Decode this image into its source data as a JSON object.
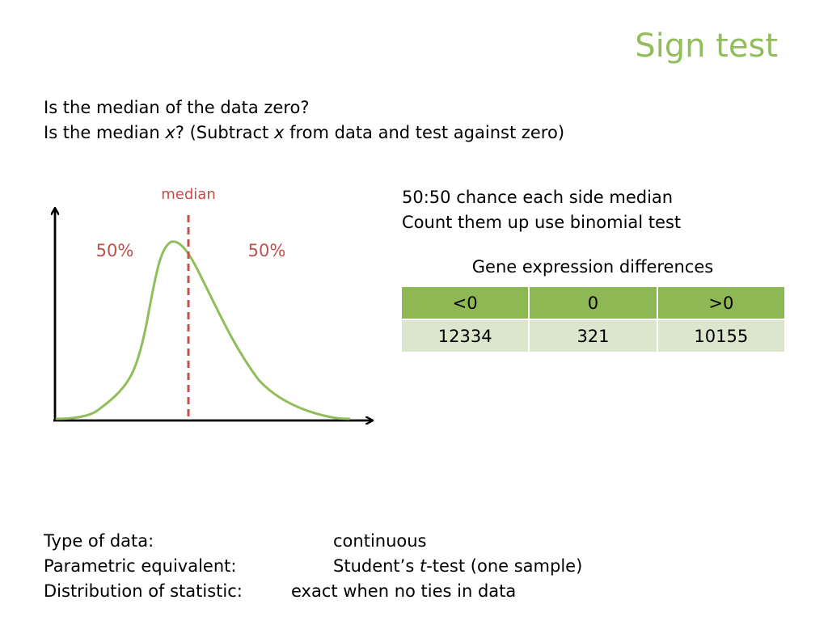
{
  "title": "Sign test",
  "intro": {
    "line1": "Is the median of the data zero?",
    "line2_a": "Is the median ",
    "line2_x1": "x",
    "line2_b": "? (Subtract ",
    "line2_x2": "x",
    "line2_c": " from data and test against zero)"
  },
  "diagram": {
    "median_label": "median",
    "left_pct": "50%",
    "right_pct": "50%",
    "curve_color": "#92bd5c",
    "median_color": "#c0504d"
  },
  "notes": {
    "line1": "50:50 chance each side median",
    "line2": "Count them up use binomial test"
  },
  "table": {
    "caption": "Gene expression differences",
    "headers": [
      "<0",
      "0",
      ">0"
    ],
    "values": [
      "12334",
      "321",
      "10155"
    ],
    "header_color": "#8eb854",
    "row_color": "#dbe6cc"
  },
  "footer": {
    "type_label": "Type of data:",
    "type_value": "continuous",
    "param_label": "Parametric equivalent:",
    "param_value_a": "Student’s ",
    "param_value_t": "t",
    "param_value_b": "-test (one sample)",
    "dist_label": "Distribution of statistic:",
    "dist_value": "exact when no ties in data"
  }
}
